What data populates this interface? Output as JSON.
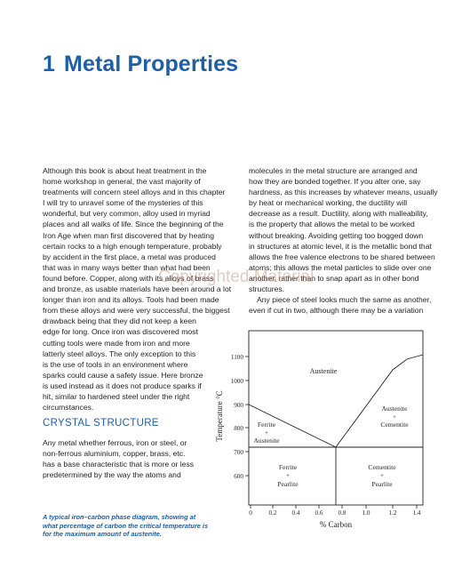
{
  "chapter": {
    "number": "1",
    "title": "Metal Properties"
  },
  "watermark": "Copyrighted Material",
  "body_left_1": [
    "Although this book is about heat treatment in the",
    "home workshop in general, the vast majority of",
    "treatments will concern steel alloys and in this chapter",
    "I will try to unravel some of the mysteries of this",
    "wonderful, but very common, alloy used in myriad",
    "places and all walks of life. Since the beginning of the",
    "Iron Age when man first discovered that by heating",
    "certain rocks to a high enough temperature, probably",
    "by accident in the first place, a metal was produced",
    "that was in many ways better than what had been",
    "found before. Copper, along with its alloys of brass",
    "and bronze, as usable materials have been around a lot",
    "longer than iron and its alloys. Tools had been made",
    "from these alloys and were very successful, the biggest",
    "drawback being that they did not keep a keen",
    "edge for long. Once iron was discovered most",
    "cutting tools were made from iron and more",
    "latterly steel alloys. The only exception to this",
    "is the use of tools in an environment where",
    "sparks could cause a safety issue. Here bronze",
    "is used instead as it does not produce sparks if",
    "hit, similar to hardened steel under the right",
    "circumstances."
  ],
  "section_heading": "CRYSTAL STRUCTURE",
  "body_left_2": [
    "Any metal whether ferrous, iron or steel, or",
    "non-ferrous aluminium, copper, brass, etc.",
    "has a base characteristic that is more or less",
    "predetermined by the way the atoms and"
  ],
  "body_right": [
    "molecules in the metal structure are arranged and",
    "how they are bonded together. If you alter one, say",
    "hardness, as this increases by whatever means, usually",
    "by heat or mechanical working, the ductility will",
    "decrease as a result. Ductility, along with malleability,",
    "is the property that allows the metal to be worked",
    "without breaking. Avoiding getting too bogged down",
    "in structures at atomic level, it is the metallic bond that",
    "allows the free valence electrons to be shared between",
    "atoms; this allows the metal particles to slide over one",
    "another, rather than to snap apart as in other bond",
    "structures."
  ],
  "body_right_2": [
    "Any piece of steel looks much the same as another,",
    "even if cut in two, although there may be a variation"
  ],
  "caption": [
    "A typical iron–carbon phase diagram, showing at",
    "what percentage of carbon the critical temperature is",
    "for the maximum amount of austenite."
  ],
  "diagram": {
    "y_label": "Temperature °C",
    "x_label": "% Carbon",
    "y_ticks": [
      "1100",
      "1000",
      "900",
      "800",
      "700",
      "600"
    ],
    "x_ticks": [
      "0",
      "0.2",
      "0.4",
      "0.6",
      "0.8",
      "1.0",
      "1.2",
      "1.4"
    ],
    "regions": {
      "austenite": "Austenite",
      "austenite_cementite": [
        "Austenite",
        "+",
        "Cementite"
      ],
      "ferrite_austenite": [
        "Ferrite",
        "+",
        "Austenite"
      ],
      "ferrite_pearlite": [
        "Ferrite",
        "+",
        "Pearlite"
      ],
      "cementite_pearlite": [
        "Cementite",
        "+",
        "Pearlite"
      ]
    }
  }
}
